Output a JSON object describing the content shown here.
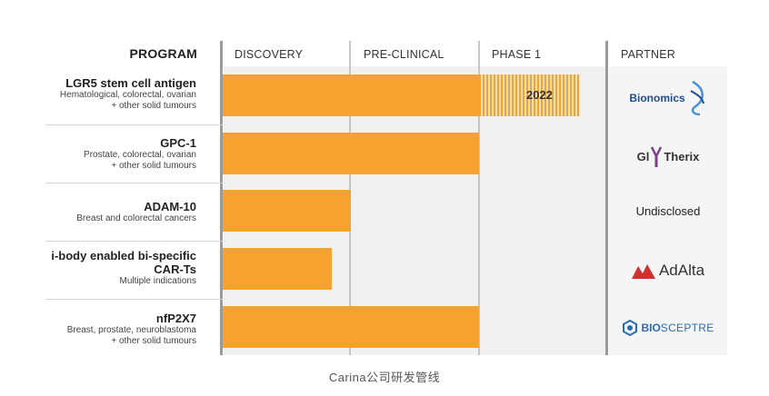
{
  "header": {
    "program": "PROGRAM",
    "discovery": "DISCOVERY",
    "preclinical": "PRE-CLINICAL",
    "phase1": "PHASE 1",
    "partner": "PARTNER"
  },
  "programs": [
    {
      "title": "LGR5 stem cell antigen",
      "sub1": "Hematological, colorectal, ovarian",
      "sub2": "+ other solid tumours",
      "partner": "Bionomics"
    },
    {
      "title": "GPC-1",
      "sub1": "Prostate, colorectal, ovarian",
      "sub2": "+ other solid tumours",
      "partner_a": "Gl",
      "partner_b": "Therix"
    },
    {
      "title": "ADAM-10",
      "sub1": "Breast and colorectal cancers",
      "sub2": "",
      "partner": "Undisclosed"
    },
    {
      "title": "i-body enabled bi-specific",
      "title2": "CAR-Ts",
      "sub1": "Multiple indications",
      "sub2": "",
      "partner": "AdAlta"
    },
    {
      "title": "nfP2X7",
      "sub1": "Breast, prostate, neuroblastoma",
      "sub2": "+ other solid tumours",
      "partner_a": "BIO",
      "partner_b": "SCEPTRE"
    }
  ],
  "chart_data": {
    "type": "bar",
    "orientation": "horizontal",
    "stages": [
      "DISCOVERY",
      "PRE-CLINICAL",
      "PHASE 1"
    ],
    "xlim": [
      0,
      3
    ],
    "categories": [
      "LGR5 stem cell antigen",
      "GPC-1",
      "ADAM-10",
      "i-body enabled bi-specific CAR-Ts",
      "nfP2X7"
    ],
    "values": [
      2.0,
      2.0,
      1.0,
      0.85,
      2.0
    ],
    "planned": [
      {
        "category": "LGR5 stem cell antigen",
        "from": 2.0,
        "to": 2.78,
        "label": "2022"
      }
    ],
    "color": "#f6a22e"
  },
  "caption": "Carina公司研发管线"
}
